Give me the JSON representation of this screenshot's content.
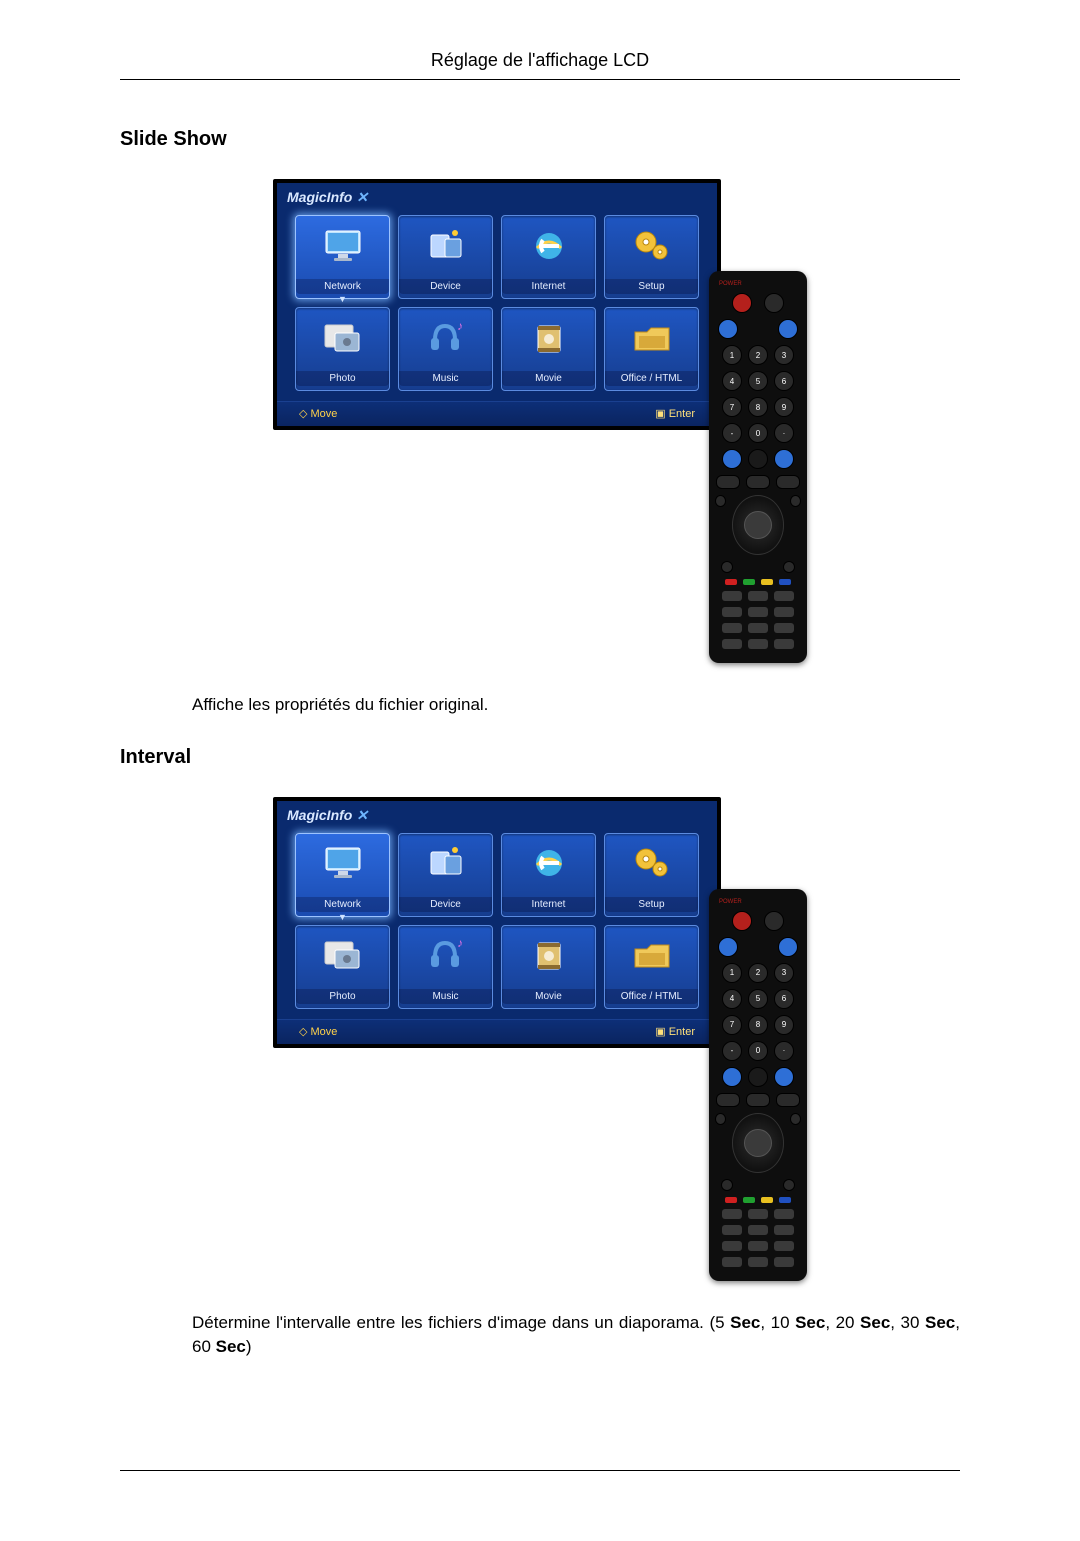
{
  "header": {
    "title": "Réglage de l'affichage LCD"
  },
  "sections": {
    "slideshow": {
      "heading": "Slide Show",
      "body": "Affiche les propriétés du fichier original."
    },
    "interval": {
      "heading": "Interval",
      "body_prefix": "Détermine l'intervalle entre les fichiers d'image dans un diaporama. (5 ",
      "sec1": "Sec",
      "sep1": ", 10 ",
      "sec2": "Sec",
      "sep2": ", 20 ",
      "sec3": "Sec",
      "sep3": ", 30 ",
      "sec4": "Sec",
      "sep4": ", 60 ",
      "sec5": "Sec",
      "suffix": ")"
    }
  },
  "tv": {
    "logo": "MagicInfo",
    "tiles_row1": [
      {
        "label": "Network",
        "icon": "monitor",
        "selected": true,
        "colors": [
          "#bfe4ff",
          "#4fa4e8"
        ]
      },
      {
        "label": "Device",
        "icon": "device",
        "selected": false,
        "colors": [
          "#bcd7ff",
          "#6aa0e0"
        ]
      },
      {
        "label": "Internet",
        "icon": "ie",
        "selected": false,
        "colors": [
          "#3fb4e8",
          "#1a7fc0"
        ]
      },
      {
        "label": "Setup",
        "icon": "gears",
        "selected": false,
        "colors": [
          "#f2c23a",
          "#b8860b"
        ]
      }
    ],
    "tiles_row2": [
      {
        "label": "Photo",
        "icon": "photo",
        "selected": false,
        "colors": [
          "#e8e8e8",
          "#9bb6d4"
        ]
      },
      {
        "label": "Music",
        "icon": "music",
        "selected": false,
        "colors": [
          "#d96fe0",
          "#5a9be0"
        ]
      },
      {
        "label": "Movie",
        "icon": "movie",
        "selected": false,
        "colors": [
          "#e0c070",
          "#8a6a30"
        ]
      },
      {
        "label": "Office / HTML",
        "icon": "folder",
        "selected": false,
        "colors": [
          "#f0c95a",
          "#c08a1a"
        ]
      }
    ],
    "footer": {
      "move": "Move",
      "enter": "Enter"
    }
  },
  "remote": {
    "power_label": "POWER",
    "numpad": [
      [
        "1",
        "2",
        "3"
      ],
      [
        "4",
        "5",
        "6"
      ],
      [
        "7",
        "8",
        "9"
      ],
      [
        "-",
        "0",
        "·"
      ]
    ],
    "color_buttons": [
      "#d02020",
      "#20a030",
      "#e8c020",
      "#2050c0"
    ]
  },
  "style": {
    "page_bg": "#ffffff",
    "text_color": "#000000",
    "tv_bg": "#0a2a6e",
    "tile_bg_top": "#1f56c2",
    "tile_bg_bottom": "#163d8f",
    "tile_border": "#5b8be0",
    "tile_selected_glow": "#9cc3ff",
    "footer_text": "#ffd24a",
    "remote_bg": "#0e0e0e"
  }
}
